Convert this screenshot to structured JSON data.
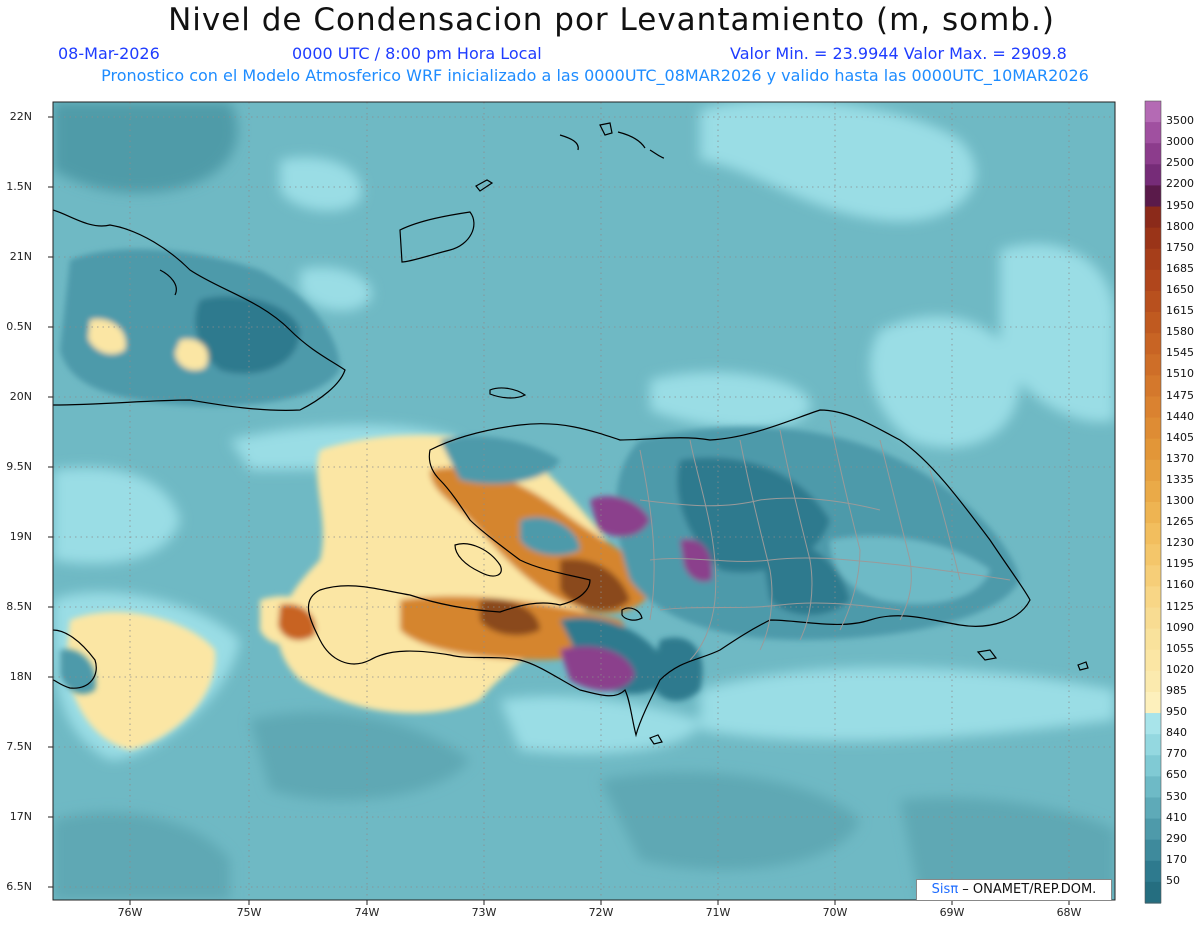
{
  "header": {
    "title": "Nivel de Condensacion por Levantamiento (m, somb.)",
    "date": "08-Mar-2026",
    "time": "0000 UTC / 8:00 pm Hora Local",
    "minmax": "Valor Min. = 23.9944   Valor Max. = 2909.8",
    "model_line": "Pronostico con el Modelo Atmosferico WRF inicializado a las 0000UTC_08MAR2026 y valido hasta las  0000UTC_10MAR2026"
  },
  "map": {
    "lat_labels": [
      "22N",
      "1.5N",
      "21N",
      "0.5N",
      "20N",
      "9.5N",
      "19N",
      "8.5N",
      "18N",
      "7.5N",
      "17N",
      "6.5N"
    ],
    "lon_labels": [
      "76W",
      "75W",
      "74W",
      "73W",
      "72W",
      "71W",
      "70W",
      "69W",
      "68W"
    ],
    "credit_prefix": "Sis",
    "credit_pi": "π",
    "credit_suffix": "– ONAMET/REP.DOM.",
    "colors": {
      "ocean": "#6fb9c4",
      "ocean_dark": "#4f9ba8",
      "ocean_light": "#9adde5",
      "yellow": "#fbe9a0",
      "orange": "#d5852e",
      "brown": "#8a4a1c",
      "purple": "#8b3f8c",
      "teal": "#2f7f8f"
    }
  },
  "colorbar": {
    "labels": [
      "3500",
      "3000",
      "2500",
      "2200",
      "1950",
      "1800",
      "1750",
      "1685",
      "1650",
      "1615",
      "1580",
      "1545",
      "1510",
      "1475",
      "1440",
      "1405",
      "1370",
      "1335",
      "1300",
      "1265",
      "1230",
      "1195",
      "1160",
      "1125",
      "1090",
      "1055",
      "1020",
      "985",
      "950",
      "840",
      "770",
      "650",
      "530",
      "410",
      "290",
      "170",
      "50"
    ],
    "colors": [
      "#b46ab4",
      "#a050a0",
      "#8c3c8c",
      "#762c78",
      "#5a1a4a",
      "#8b2a1a",
      "#9a3418",
      "#a63e1a",
      "#b0461c",
      "#b8501e",
      "#c05a20",
      "#c86424",
      "#ce6e28",
      "#d4782c",
      "#da8230",
      "#de8c34",
      "#e29638",
      "#e6a040",
      "#eaaa48",
      "#eeb452",
      "#f2be5e",
      "#f4c66a",
      "#f6ce78",
      "#f8d686",
      "#f8dc92",
      "#f9e29c",
      "#fbe6a4",
      "#fbeaae",
      "#fdf0bc",
      "#a8e4ea",
      "#94d8e0",
      "#80cad4",
      "#6ebac6",
      "#5eaab8",
      "#4e9aaa",
      "#3e8a9c",
      "#2e7a8e",
      "#256e80"
    ]
  }
}
